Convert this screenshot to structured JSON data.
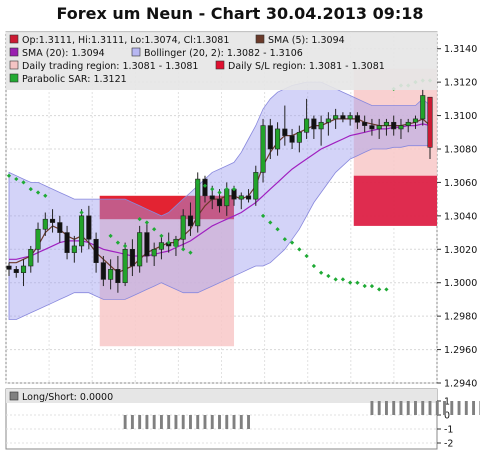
{
  "chart_data": [
    {
      "type": "candlestick",
      "title": "Forex um Neun - Chart 30.04.2013 09:18",
      "ylim": [
        1.294,
        1.315
      ],
      "y_ticks": [
        "1.3140",
        "1.3120",
        "1.3100",
        "1.3080",
        "1.3060",
        "1.3040",
        "1.3020",
        "1.3000",
        "1.2980",
        "1.2960",
        "1.2940"
      ],
      "legend": [
        {
          "name": "Op:1.3111, Hi:1.3111, Lo:1.3074, Cl:1.3081",
          "color": "#cc1a33"
        },
        {
          "name": "SMA (5): 1.3094",
          "color": "#6b3a2a"
        },
        {
          "name": "SMA (20): 1.3094",
          "color": "#9a1fb0"
        },
        {
          "name": "Bollinger (20, 2): 1.3082 - 1.3106",
          "color": "#b7b7f2"
        },
        {
          "name": "Daily trading region: 1.3081 - 1.3081",
          "color": "#f4c4c4"
        },
        {
          "name": "Daily S/L region: 1.3081 - 1.3081",
          "color": "#e01030"
        },
        {
          "name": "Parabolic SAR: 1.3121",
          "color": "#22aa33"
        }
      ],
      "ohlc": [
        [
          1.301,
          1.3012,
          1.3004,
          1.3008
        ],
        [
          1.3008,
          1.301,
          1.3003,
          1.3006
        ],
        [
          1.3006,
          1.3014,
          1.2998,
          1.301
        ],
        [
          1.301,
          1.3022,
          1.3006,
          1.302
        ],
        [
          1.302,
          1.3036,
          1.3012,
          1.3032
        ],
        [
          1.3032,
          1.3042,
          1.3028,
          1.3038
        ],
        [
          1.3038,
          1.3044,
          1.303,
          1.3036
        ],
        [
          1.3036,
          1.304,
          1.3024,
          1.303
        ],
        [
          1.303,
          1.3034,
          1.3014,
          1.3018
        ],
        [
          1.3018,
          1.3028,
          1.3012,
          1.3022
        ],
        [
          1.3022,
          1.3044,
          1.3018,
          1.304
        ],
        [
          1.304,
          1.3046,
          1.302,
          1.3026
        ],
        [
          1.3026,
          1.303,
          1.3006,
          1.3012
        ],
        [
          1.3012,
          1.3016,
          1.2998,
          1.3002
        ],
        [
          1.3002,
          1.3014,
          1.2996,
          1.3008
        ],
        [
          1.3008,
          1.3016,
          1.2994,
          1.3
        ],
        [
          1.3,
          1.3024,
          1.2998,
          1.302
        ],
        [
          1.302,
          1.3026,
          1.3004,
          1.301
        ],
        [
          1.301,
          1.3034,
          1.3006,
          1.303
        ],
        [
          1.303,
          1.3036,
          1.3012,
          1.3016
        ],
        [
          1.3016,
          1.3024,
          1.301,
          1.302
        ],
        [
          1.302,
          1.3028,
          1.3014,
          1.3024
        ],
        [
          1.3024,
          1.303,
          1.3018,
          1.3022
        ],
        [
          1.3022,
          1.3028,
          1.3016,
          1.3026
        ],
        [
          1.3026,
          1.3044,
          1.302,
          1.304
        ],
        [
          1.304,
          1.3048,
          1.3028,
          1.3034
        ],
        [
          1.3034,
          1.3066,
          1.303,
          1.3062
        ],
        [
          1.3062,
          1.3064,
          1.3048,
          1.3052
        ],
        [
          1.3052,
          1.3058,
          1.3044,
          1.305
        ],
        [
          1.305,
          1.3056,
          1.3042,
          1.3046
        ],
        [
          1.3046,
          1.306,
          1.304,
          1.3056
        ],
        [
          1.3056,
          1.3058,
          1.3046,
          1.305
        ],
        [
          1.305,
          1.3054,
          1.3044,
          1.3052
        ],
        [
          1.3052,
          1.3056,
          1.3048,
          1.305
        ],
        [
          1.305,
          1.307,
          1.3046,
          1.3066
        ],
        [
          1.3066,
          1.3098,
          1.306,
          1.3094
        ],
        [
          1.3094,
          1.3098,
          1.3074,
          1.308
        ],
        [
          1.308,
          1.3096,
          1.3076,
          1.3092
        ],
        [
          1.3092,
          1.3106,
          1.3082,
          1.3088
        ],
        [
          1.3088,
          1.3092,
          1.308,
          1.3084
        ],
        [
          1.3084,
          1.3094,
          1.3078,
          1.309
        ],
        [
          1.309,
          1.311,
          1.3086,
          1.3098
        ],
        [
          1.3098,
          1.31,
          1.3086,
          1.3092
        ],
        [
          1.3092,
          1.31,
          1.3082,
          1.3096
        ],
        [
          1.3096,
          1.3102,
          1.3088,
          1.3098
        ],
        [
          1.3098,
          1.3104,
          1.3092,
          1.31
        ],
        [
          1.31,
          1.3102,
          1.3096,
          1.3098
        ],
        [
          1.3098,
          1.3102,
          1.3094,
          1.31
        ],
        [
          1.31,
          1.3102,
          1.3092,
          1.3096
        ],
        [
          1.3096,
          1.31,
          1.309,
          1.3094
        ],
        [
          1.3094,
          1.3098,
          1.3088,
          1.3092
        ],
        [
          1.3092,
          1.3098,
          1.3086,
          1.3094
        ],
        [
          1.3094,
          1.3098,
          1.3088,
          1.3096
        ],
        [
          1.3096,
          1.31,
          1.3088,
          1.3092
        ],
        [
          1.3092,
          1.3098,
          1.3086,
          1.3094
        ],
        [
          1.3094,
          1.3098,
          1.309,
          1.3096
        ],
        [
          1.3096,
          1.31,
          1.3092,
          1.3098
        ],
        [
          1.3098,
          1.3116,
          1.3094,
          1.3112
        ],
        [
          1.3111,
          1.3111,
          1.3074,
          1.3081
        ]
      ],
      "sma5": [
        1.3012,
        1.3012,
        1.3014,
        1.3016,
        1.3022,
        1.303,
        1.3034,
        1.3032,
        1.3028,
        1.3026,
        1.3028,
        1.3024,
        1.3018,
        1.3014,
        1.301,
        1.3006,
        1.3008,
        1.301,
        1.3014,
        1.3018,
        1.302,
        1.3022,
        1.3024,
        1.3024,
        1.3028,
        1.3032,
        1.304,
        1.3046,
        1.305,
        1.305,
        1.3052,
        1.3052,
        1.305,
        1.3052,
        1.3058,
        1.307,
        1.3078,
        1.3084,
        1.3088,
        1.3088,
        1.309,
        1.3092,
        1.3094,
        1.3094,
        1.3096,
        1.3098,
        1.3098,
        1.3098,
        1.3098,
        1.3096,
        1.3095,
        1.3094,
        1.3094,
        1.3094,
        1.3094,
        1.3095,
        1.3096,
        1.3098,
        1.3094
      ],
      "sma20": [
        1.3014,
        1.3014,
        1.3015,
        1.3016,
        1.3018,
        1.302,
        1.3022,
        1.3024,
        1.3025,
        1.3025,
        1.3025,
        1.3024,
        1.3022,
        1.302,
        1.3019,
        1.3018,
        1.3017,
        1.3016,
        1.3016,
        1.3016,
        1.3017,
        1.3018,
        1.3019,
        1.3021,
        1.3023,
        1.3025,
        1.3028,
        1.3031,
        1.3034,
        1.3036,
        1.3038,
        1.304,
        1.3042,
        1.3045,
        1.3048,
        1.3052,
        1.3056,
        1.306,
        1.3064,
        1.3068,
        1.3071,
        1.3074,
        1.3077,
        1.308,
        1.3082,
        1.3084,
        1.3086,
        1.3088,
        1.3089,
        1.309,
        1.3091,
        1.3092,
        1.3092,
        1.3093,
        1.3093,
        1.3094,
        1.3094,
        1.3095,
        1.3094
      ],
      "boll_upper": [
        1.3066,
        1.3064,
        1.3062,
        1.306,
        1.306,
        1.3058,
        1.3056,
        1.3054,
        1.3052,
        1.305,
        1.305,
        1.305,
        1.305,
        1.305,
        1.305,
        1.305,
        1.305,
        1.3048,
        1.3046,
        1.3044,
        1.3042,
        1.304,
        1.3042,
        1.3046,
        1.305,
        1.3054,
        1.3058,
        1.3062,
        1.3066,
        1.3068,
        1.307,
        1.3072,
        1.3078,
        1.3086,
        1.3094,
        1.3104,
        1.311,
        1.3114,
        1.3116,
        1.3118,
        1.3119,
        1.312,
        1.312,
        1.312,
        1.3118,
        1.3116,
        1.3114,
        1.3112,
        1.311,
        1.3108,
        1.3106,
        1.3106,
        1.3106,
        1.3106,
        1.3106,
        1.3106,
        1.3106,
        1.311,
        1.3106
      ],
      "boll_lower": [
        1.2978,
        1.2978,
        1.298,
        1.2982,
        1.2984,
        1.2986,
        1.2988,
        1.299,
        1.2992,
        1.2994,
        1.2994,
        1.2994,
        1.2992,
        1.299,
        1.299,
        1.299,
        1.299,
        1.2992,
        1.2994,
        1.2996,
        1.2998,
        1.3,
        1.2998,
        1.2996,
        1.2994,
        1.2994,
        1.2994,
        1.2996,
        1.2998,
        1.3,
        1.3002,
        1.3004,
        1.3006,
        1.3008,
        1.301,
        1.301,
        1.3012,
        1.3016,
        1.302,
        1.3026,
        1.3032,
        1.304,
        1.3048,
        1.3054,
        1.306,
        1.3066,
        1.307,
        1.3074,
        1.3076,
        1.3078,
        1.308,
        1.308,
        1.308,
        1.3081,
        1.3081,
        1.3082,
        1.3082,
        1.3082,
        1.3082
      ],
      "sar": [
        [
          0,
          1.3064
        ],
        [
          1,
          1.3062
        ],
        [
          2,
          1.306
        ],
        [
          3,
          1.3056
        ],
        [
          4,
          1.3054
        ],
        [
          5,
          1.3052
        ],
        [
          10,
          1.3042
        ],
        [
          14,
          1.3028
        ],
        [
          15,
          1.3024
        ],
        [
          16,
          1.3022
        ],
        [
          18,
          1.3038
        ],
        [
          19,
          1.3036
        ],
        [
          20,
          1.3032
        ],
        [
          21,
          1.3028
        ],
        [
          22,
          1.3024
        ],
        [
          23,
          1.3022
        ],
        [
          24,
          1.302
        ],
        [
          25,
          1.3018
        ],
        [
          26,
          1.306
        ],
        [
          27,
          1.3058
        ],
        [
          28,
          1.3056
        ],
        [
          29,
          1.3054
        ],
        [
          30,
          1.3056
        ],
        [
          31,
          1.3056
        ],
        [
          35,
          1.304
        ],
        [
          36,
          1.3036
        ],
        [
          37,
          1.3032
        ],
        [
          38,
          1.3026
        ],
        [
          39,
          1.3024
        ],
        [
          40,
          1.302
        ],
        [
          41,
          1.3016
        ],
        [
          42,
          1.301
        ],
        [
          43,
          1.3006
        ],
        [
          44,
          1.3004
        ],
        [
          45,
          1.3002
        ],
        [
          46,
          1.3002
        ],
        [
          47,
          1.3
        ],
        [
          48,
          1.3
        ],
        [
          49,
          1.2998
        ],
        [
          50,
          1.2998
        ],
        [
          51,
          1.2996
        ],
        [
          52,
          1.2996
        ],
        [
          53,
          1.3116
        ],
        [
          54,
          1.3118
        ],
        [
          55,
          1.3118
        ],
        [
          56,
          1.312
        ],
        [
          57,
          1.3121
        ],
        [
          58,
          1.3121
        ]
      ],
      "regions": [
        {
          "kind": "trading",
          "from": 13,
          "to": 31,
          "low": 1.2962,
          "high": 1.3052,
          "color": "#f8c8c8"
        },
        {
          "kind": "stop",
          "from": 13,
          "to": 31,
          "low": 1.3038,
          "high": 1.3052,
          "color": "#e01020"
        },
        {
          "kind": "trading",
          "from": 48,
          "to": 66,
          "low": 1.3034,
          "high": 1.3128,
          "color": "#f8c8c8"
        },
        {
          "kind": "stop",
          "from": 48,
          "to": 66,
          "low": 1.3034,
          "high": 1.3064,
          "color": "#dc1a40"
        }
      ]
    },
    {
      "type": "bar",
      "title": "Long/Short: 0.0000",
      "ylim": [
        -2,
        1
      ],
      "y_ticks": [
        "1",
        "0",
        "-1",
        "-2"
      ],
      "bars": [
        {
          "from": 16,
          "to": 33,
          "value": -1
        },
        {
          "from": 50,
          "to": 67,
          "value": 1
        }
      ],
      "color": "#808080"
    }
  ]
}
